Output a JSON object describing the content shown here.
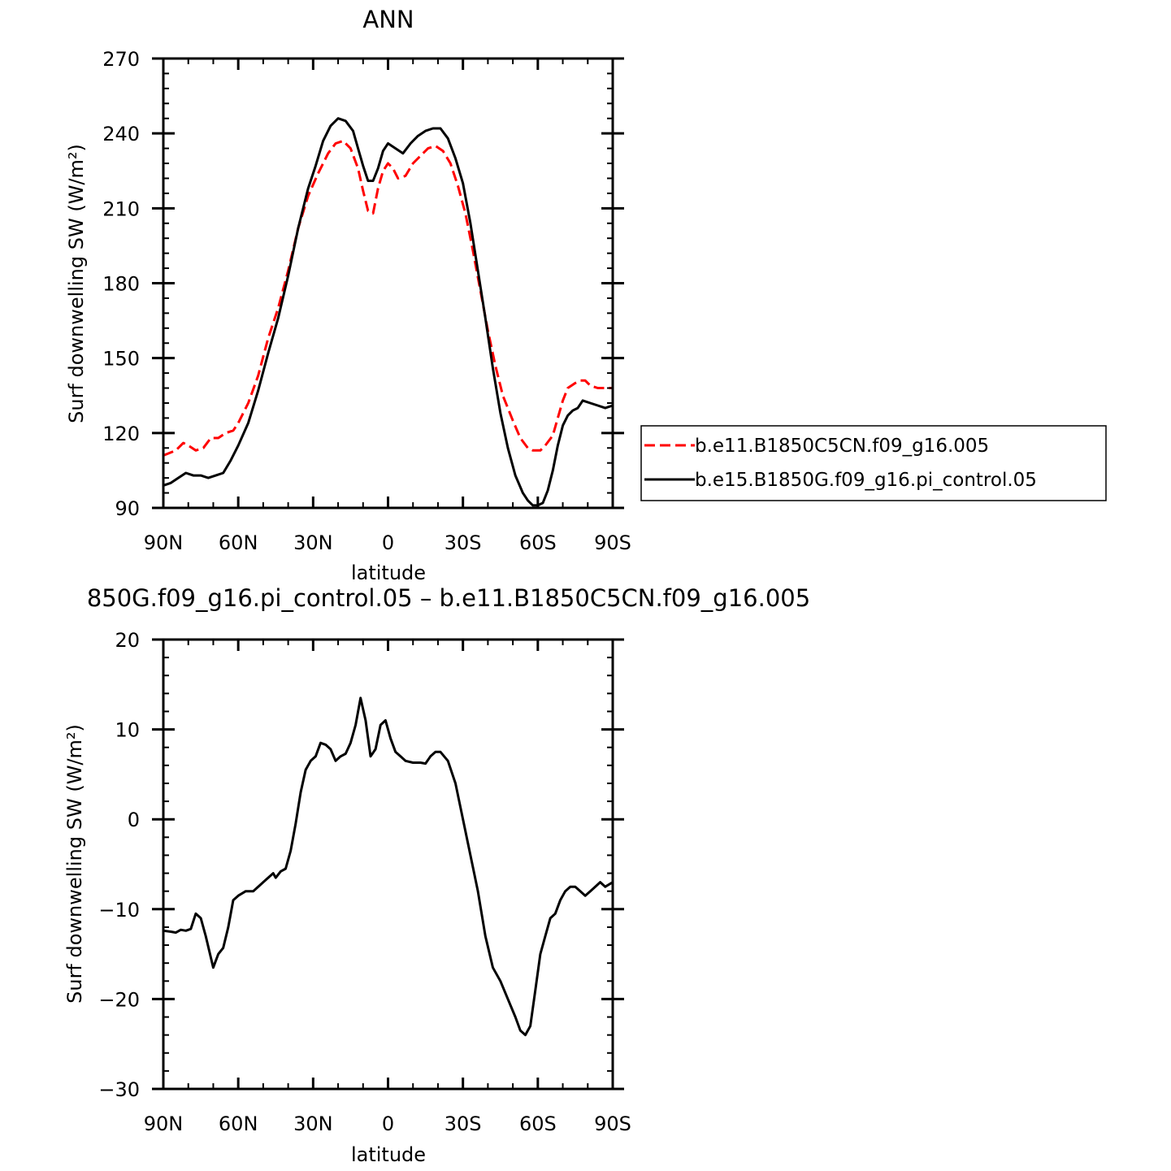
{
  "colors": {
    "red": "#ff0000",
    "black": "#000000"
  },
  "chart_data": [
    {
      "type": "line",
      "title": "ANN",
      "xlabel": "latitude",
      "ylabel": "Surf downwelling SW (W/m²)",
      "xlim": [
        -90,
        90
      ],
      "ylim": [
        90,
        270
      ],
      "x_reversed": true,
      "xticks": [
        {
          "value": -90,
          "label": "90N"
        },
        {
          "value": -60,
          "label": "60N"
        },
        {
          "value": -30,
          "label": "30N"
        },
        {
          "value": 0,
          "label": "0"
        },
        {
          "value": 30,
          "label": "30S"
        },
        {
          "value": 60,
          "label": "60S"
        },
        {
          "value": 90,
          "label": "90S"
        }
      ],
      "yticks": [
        {
          "value": 270,
          "label": "270"
        },
        {
          "value": 240,
          "label": "240"
        },
        {
          "value": 210,
          "label": "210"
        },
        {
          "value": 180,
          "label": "180"
        },
        {
          "value": 150,
          "label": "150"
        },
        {
          "value": 120,
          "label": "120"
        },
        {
          "value": 90,
          "label": "90"
        }
      ],
      "legend": {
        "placement": "right",
        "entries": [
          "b.e11.B1850C5CN.f09_g16.005",
          "b.e15.B1850G.f09_g16.pi_control.05"
        ]
      },
      "series": [
        {
          "name": "b.e11.B1850C5CN.f09_g16.005",
          "color": "#ff0000",
          "dash": "dashed",
          "points": [
            [
              -90,
              111
            ],
            [
              -85,
              113
            ],
            [
              -82,
              116
            ],
            [
              -80,
              115
            ],
            [
              -77,
              113
            ],
            [
              -74,
              114
            ],
            [
              -71,
              118
            ],
            [
              -68,
              118
            ],
            [
              -65,
              120
            ],
            [
              -62,
              121
            ],
            [
              -60,
              124
            ],
            [
              -56,
              132
            ],
            [
              -52,
              143
            ],
            [
              -48,
              158
            ],
            [
              -44,
              170
            ],
            [
              -40,
              185
            ],
            [
              -36,
              202
            ],
            [
              -32,
              215
            ],
            [
              -28,
              224
            ],
            [
              -24,
              232
            ],
            [
              -21,
              236
            ],
            [
              -18,
              237
            ],
            [
              -15,
              234
            ],
            [
              -12,
              226
            ],
            [
              -10,
              217
            ],
            [
              -8,
              209
            ],
            [
              -6,
              208
            ],
            [
              -4,
              218
            ],
            [
              -2,
              225
            ],
            [
              0,
              228
            ],
            [
              2,
              226
            ],
            [
              4,
              222
            ],
            [
              7,
              223
            ],
            [
              10,
              228
            ],
            [
              13,
              231
            ],
            [
              16,
              234
            ],
            [
              19,
              235
            ],
            [
              22,
              233
            ],
            [
              25,
              228
            ],
            [
              28,
              219
            ],
            [
              31,
              208
            ],
            [
              34,
              193
            ],
            [
              37,
              177
            ],
            [
              40,
              161
            ],
            [
              43,
              147
            ],
            [
              46,
              135
            ],
            [
              50,
              125
            ],
            [
              53,
              118
            ],
            [
              56,
              114
            ],
            [
              58,
              113
            ],
            [
              61,
              113
            ],
            [
              63,
              115
            ],
            [
              66,
              119
            ],
            [
              68,
              126
            ],
            [
              70,
              133
            ],
            [
              72,
              138
            ],
            [
              75,
              140
            ],
            [
              77,
              141
            ],
            [
              79,
              141
            ],
            [
              81,
              139
            ],
            [
              84,
              138
            ],
            [
              87,
              138
            ],
            [
              90,
              138
            ]
          ]
        },
        {
          "name": "b.e15.B1850G.f09_g16.pi_control.05",
          "color": "#000000",
          "dash": "solid",
          "points": [
            [
              -90,
              99
            ],
            [
              -87,
              100
            ],
            [
              -84,
              102
            ],
            [
              -81,
              104
            ],
            [
              -78,
              103
            ],
            [
              -75,
              103
            ],
            [
              -72,
              102
            ],
            [
              -69,
              103
            ],
            [
              -66,
              104
            ],
            [
              -63,
              109
            ],
            [
              -60,
              115
            ],
            [
              -56,
              124
            ],
            [
              -52,
              137
            ],
            [
              -48,
              152
            ],
            [
              -44,
              166
            ],
            [
              -40,
              183
            ],
            [
              -36,
              202
            ],
            [
              -32,
              218
            ],
            [
              -29,
              227
            ],
            [
              -26,
              237
            ],
            [
              -23,
              243
            ],
            [
              -20,
              246
            ],
            [
              -17,
              245
            ],
            [
              -14,
              241
            ],
            [
              -12,
              234
            ],
            [
              -10,
              227
            ],
            [
              -8,
              221
            ],
            [
              -6,
              221
            ],
            [
              -4,
              226
            ],
            [
              -2,
              233
            ],
            [
              0,
              236
            ],
            [
              3,
              234
            ],
            [
              6,
              232
            ],
            [
              9,
              236
            ],
            [
              12,
              239
            ],
            [
              15,
              241
            ],
            [
              18,
              242
            ],
            [
              21,
              242
            ],
            [
              24,
              238
            ],
            [
              27,
              230
            ],
            [
              30,
              220
            ],
            [
              33,
              204
            ],
            [
              36,
              185
            ],
            [
              39,
              166
            ],
            [
              42,
              146
            ],
            [
              45,
              128
            ],
            [
              48,
              114
            ],
            [
              51,
              103
            ],
            [
              54,
              96
            ],
            [
              56,
              93
            ],
            [
              58,
              91
            ],
            [
              60,
              91
            ],
            [
              62,
              92
            ],
            [
              64,
              97
            ],
            [
              66,
              105
            ],
            [
              68,
              115
            ],
            [
              70,
              123
            ],
            [
              72,
              127
            ],
            [
              74,
              129
            ],
            [
              76,
              130
            ],
            [
              78,
              133
            ],
            [
              81,
              132
            ],
            [
              84,
              131
            ],
            [
              87,
              130
            ],
            [
              90,
              131
            ]
          ]
        }
      ]
    },
    {
      "type": "line",
      "title": "850G.f09_g16.pi_control.05 – b.e11.B1850C5CN.f09_g16.005",
      "xlabel": "latitude",
      "ylabel": "Surf downwelling SW (W/m²)",
      "xlim": [
        -90,
        90
      ],
      "ylim": [
        -30,
        20
      ],
      "x_reversed": true,
      "xticks": [
        {
          "value": -90,
          "label": "90N"
        },
        {
          "value": -60,
          "label": "60N"
        },
        {
          "value": -30,
          "label": "30N"
        },
        {
          "value": 0,
          "label": "0"
        },
        {
          "value": 30,
          "label": "30S"
        },
        {
          "value": 60,
          "label": "60S"
        },
        {
          "value": 90,
          "label": "90S"
        }
      ],
      "yticks": [
        {
          "value": 20,
          "label": "20"
        },
        {
          "value": 10,
          "label": "10"
        },
        {
          "value": 0,
          "label": "0"
        },
        {
          "value": -10,
          "label": "−10"
        },
        {
          "value": -20,
          "label": "−20"
        },
        {
          "value": -30,
          "label": "−30"
        }
      ],
      "series": [
        {
          "color": "#000000",
          "dash": "solid",
          "points": [
            [
              -90,
              -12.4
            ],
            [
              -87,
              -12.5
            ],
            [
              -85,
              -12.6
            ],
            [
              -83,
              -12.3
            ],
            [
              -81,
              -12.4
            ],
            [
              -79,
              -12.2
            ],
            [
              -77,
              -10.5
            ],
            [
              -75,
              -11.0
            ],
            [
              -73,
              -13.0
            ],
            [
              -70,
              -16.5
            ],
            [
              -68,
              -15.0
            ],
            [
              -66,
              -14.3
            ],
            [
              -64,
              -12.0
            ],
            [
              -62,
              -9.0
            ],
            [
              -60,
              -8.5
            ],
            [
              -57,
              -8.0
            ],
            [
              -54,
              -8.0
            ],
            [
              -52,
              -7.5
            ],
            [
              -50,
              -7.0
            ],
            [
              -48,
              -6.5
            ],
            [
              -46,
              -6.0
            ],
            [
              -45,
              -6.5
            ],
            [
              -43,
              -5.8
            ],
            [
              -41,
              -5.5
            ],
            [
              -39,
              -3.5
            ],
            [
              -37,
              -0.5
            ],
            [
              -35,
              3.0
            ],
            [
              -33,
              5.5
            ],
            [
              -31,
              6.5
            ],
            [
              -29,
              7.0
            ],
            [
              -27,
              8.5
            ],
            [
              -25,
              8.3
            ],
            [
              -23,
              7.8
            ],
            [
              -21,
              6.5
            ],
            [
              -19,
              7.0
            ],
            [
              -17,
              7.3
            ],
            [
              -15,
              8.5
            ],
            [
              -13,
              10.5
            ],
            [
              -11,
              13.5
            ],
            [
              -9,
              11.0
            ],
            [
              -7,
              7.0
            ],
            [
              -5,
              7.8
            ],
            [
              -3,
              10.5
            ],
            [
              -1,
              11.0
            ],
            [
              1,
              9.0
            ],
            [
              3,
              7.5
            ],
            [
              5,
              7.0
            ],
            [
              7,
              6.5
            ],
            [
              10,
              6.3
            ],
            [
              13,
              6.3
            ],
            [
              15,
              6.2
            ],
            [
              17,
              7.0
            ],
            [
              19,
              7.5
            ],
            [
              21,
              7.5
            ],
            [
              24,
              6.5
            ],
            [
              27,
              4.0
            ],
            [
              30,
              0.0
            ],
            [
              33,
              -4.0
            ],
            [
              36,
              -8.0
            ],
            [
              39,
              -13.0
            ],
            [
              42,
              -16.5
            ],
            [
              45,
              -18.0
            ],
            [
              48,
              -20.0
            ],
            [
              51,
              -22.0
            ],
            [
              53,
              -23.5
            ],
            [
              55,
              -24.0
            ],
            [
              57,
              -23.0
            ],
            [
              59,
              -19.0
            ],
            [
              61,
              -15.0
            ],
            [
              63,
              -13.0
            ],
            [
              65,
              -11.0
            ],
            [
              67,
              -10.5
            ],
            [
              69,
              -9.0
            ],
            [
              71,
              -8.0
            ],
            [
              73,
              -7.5
            ],
            [
              75,
              -7.5
            ],
            [
              77,
              -8.0
            ],
            [
              79,
              -8.5
            ],
            [
              81,
              -8.0
            ],
            [
              83,
              -7.5
            ],
            [
              85,
              -7.0
            ],
            [
              87,
              -7.5
            ],
            [
              90,
              -7.0
            ]
          ]
        }
      ]
    }
  ]
}
